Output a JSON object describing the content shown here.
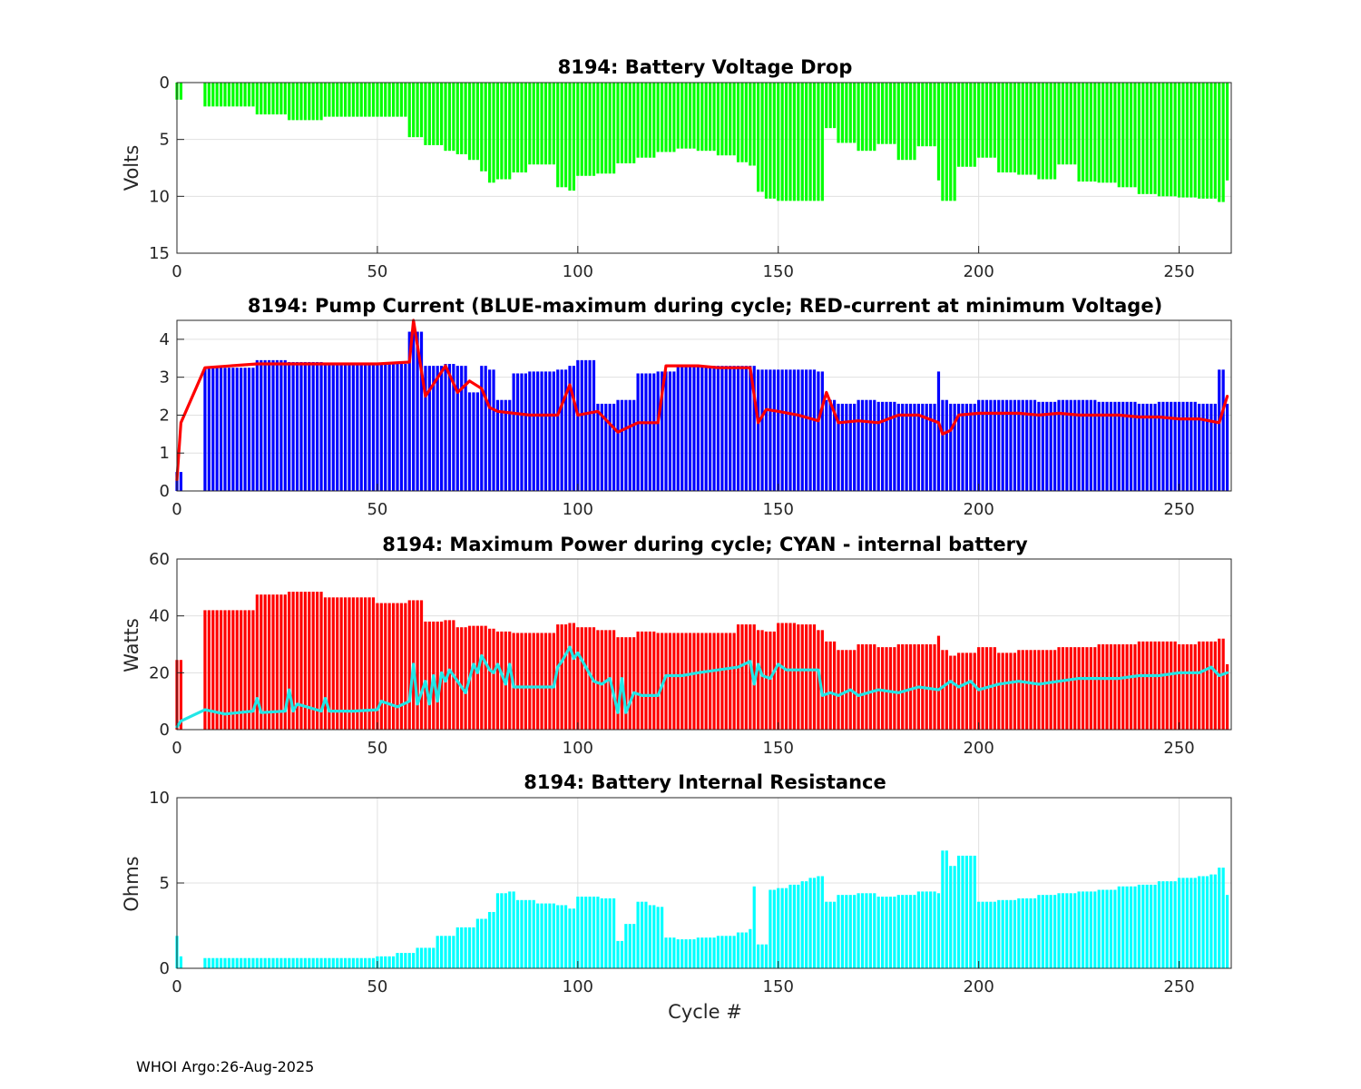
{
  "figure": {
    "footer": "WHOI Argo:26-Aug-2025"
  },
  "chart_data": [
    {
      "type": "bar",
      "title": "8194: Battery Voltage Drop",
      "xlabel": "",
      "ylabel": "Volts",
      "xlim": [
        0,
        263
      ],
      "ylim": [
        0,
        15
      ],
      "y_reversed": true,
      "xticks": [
        0,
        50,
        100,
        150,
        200,
        250
      ],
      "yticks": [
        0,
        5,
        10,
        15
      ],
      "grid": true,
      "series": [
        {
          "name": "voltage drop",
          "color": "#00ff00",
          "style": "bar",
          "x": [
            0,
            7,
            20,
            28,
            37,
            50,
            58,
            62,
            67,
            70,
            73,
            76,
            78,
            80,
            84,
            88,
            95,
            98,
            100,
            105,
            110,
            115,
            120,
            125,
            130,
            135,
            140,
            143,
            145,
            147,
            150,
            155,
            160,
            162,
            165,
            170,
            175,
            180,
            185,
            190,
            191,
            193,
            195,
            200,
            205,
            210,
            215,
            220,
            225,
            230,
            235,
            240,
            245,
            250,
            255,
            260,
            262
          ],
          "values": [
            1.5,
            2.1,
            2.8,
            3.3,
            3.0,
            3.0,
            4.8,
            5.5,
            6.0,
            6.3,
            6.8,
            7.8,
            8.8,
            8.5,
            7.9,
            7.2,
            9.2,
            9.5,
            8.2,
            8.0,
            7.1,
            6.6,
            6.1,
            5.8,
            6.0,
            6.4,
            7.0,
            7.3,
            9.6,
            10.2,
            10.4,
            10.4,
            10.4,
            4.0,
            5.3,
            6.0,
            5.4,
            6.8,
            5.6,
            8.6,
            10.4,
            10.4,
            7.4,
            6.6,
            7.9,
            8.1,
            8.5,
            7.2,
            8.7,
            8.8,
            9.2,
            9.8,
            10.0,
            10.1,
            10.2,
            10.5,
            8.6
          ]
        }
      ]
    },
    {
      "type": "bar",
      "title": "8194: Pump Current (BLUE-maximum during cycle; RED-current at minimum Voltage)",
      "xlabel": "",
      "ylabel": "",
      "xlim": [
        0,
        263
      ],
      "ylim": [
        0,
        4.5
      ],
      "xticks": [
        0,
        50,
        100,
        150,
        200,
        250
      ],
      "yticks": [
        0,
        1,
        2,
        3,
        4
      ],
      "grid": true,
      "series": [
        {
          "name": "BLUE-maximum during cycle",
          "color": "#0000ff",
          "style": "bar",
          "x": [
            0,
            7,
            20,
            28,
            37,
            50,
            58,
            62,
            67,
            70,
            73,
            76,
            78,
            80,
            84,
            88,
            95,
            98,
            100,
            105,
            110,
            115,
            120,
            125,
            130,
            135,
            140,
            143,
            145,
            147,
            150,
            155,
            160,
            162,
            165,
            170,
            175,
            180,
            185,
            190,
            191,
            193,
            195,
            200,
            205,
            210,
            215,
            220,
            225,
            230,
            235,
            240,
            245,
            250,
            255,
            260,
            262
          ],
          "values": [
            0.5,
            3.25,
            3.45,
            3.4,
            3.35,
            3.35,
            4.2,
            3.3,
            3.35,
            3.3,
            2.6,
            3.3,
            3.2,
            2.4,
            3.1,
            3.15,
            3.2,
            3.3,
            3.45,
            2.3,
            2.4,
            3.1,
            3.15,
            3.3,
            3.3,
            3.3,
            3.3,
            3.3,
            3.2,
            3.2,
            3.2,
            3.2,
            3.15,
            2.4,
            2.3,
            2.4,
            2.35,
            2.3,
            2.3,
            3.15,
            2.4,
            2.3,
            2.3,
            2.4,
            2.4,
            2.4,
            2.35,
            2.4,
            2.4,
            2.35,
            2.35,
            2.3,
            2.35,
            2.35,
            2.3,
            3.2,
            2.3
          ]
        },
        {
          "name": "RED-current at minimum Voltage",
          "color": "#ff0000",
          "style": "line",
          "x": [
            0,
            1,
            7,
            20,
            28,
            37,
            50,
            58,
            59,
            62,
            67,
            70,
            73,
            76,
            78,
            80,
            84,
            88,
            95,
            98,
            100,
            105,
            110,
            115,
            120,
            122,
            125,
            130,
            135,
            140,
            143,
            145,
            147,
            150,
            155,
            160,
            162,
            165,
            170,
            175,
            180,
            185,
            190,
            191,
            193,
            195,
            200,
            205,
            210,
            215,
            220,
            225,
            230,
            235,
            240,
            245,
            250,
            255,
            260,
            262
          ],
          "values": [
            0.3,
            1.8,
            3.25,
            3.35,
            3.35,
            3.35,
            3.35,
            3.4,
            4.5,
            2.5,
            3.3,
            2.6,
            2.9,
            2.7,
            2.2,
            2.1,
            2.05,
            2.0,
            2.0,
            2.8,
            2.0,
            2.1,
            1.55,
            1.8,
            1.8,
            3.3,
            3.3,
            3.3,
            3.25,
            3.25,
            3.25,
            1.8,
            2.15,
            2.1,
            2.0,
            1.85,
            2.6,
            1.8,
            1.85,
            1.8,
            2.0,
            2.0,
            1.8,
            1.5,
            1.6,
            2.0,
            2.05,
            2.05,
            2.05,
            2.0,
            2.05,
            2.0,
            2.0,
            2.0,
            1.95,
            1.95,
            1.9,
            1.9,
            1.8,
            2.5
          ]
        }
      ]
    },
    {
      "type": "bar",
      "title": "8194: Maximum Power during cycle; CYAN - internal battery",
      "xlabel": "",
      "ylabel": "Watts",
      "xlim": [
        0,
        263
      ],
      "ylim": [
        0,
        60
      ],
      "xticks": [
        0,
        50,
        100,
        150,
        200,
        250
      ],
      "yticks": [
        0,
        20,
        40,
        60
      ],
      "grid": true,
      "series": [
        {
          "name": "maximum power during cycle",
          "color": "#ff0000",
          "style": "bar",
          "x": [
            0,
            7,
            20,
            28,
            37,
            50,
            58,
            62,
            67,
            70,
            73,
            76,
            78,
            80,
            84,
            88,
            95,
            98,
            100,
            105,
            110,
            115,
            120,
            125,
            130,
            135,
            140,
            143,
            145,
            147,
            150,
            155,
            160,
            162,
            165,
            170,
            175,
            180,
            185,
            190,
            191,
            193,
            195,
            200,
            205,
            210,
            215,
            220,
            225,
            230,
            235,
            240,
            245,
            250,
            255,
            260,
            262
          ],
          "values": [
            24.5,
            42,
            47.5,
            48.5,
            46.5,
            44.5,
            45.5,
            38,
            38.5,
            36,
            36.5,
            36.5,
            35.5,
            34.5,
            34,
            34,
            37,
            37.5,
            36,
            35,
            32.5,
            34.5,
            34,
            34,
            34,
            34,
            37,
            37,
            35,
            34.5,
            37.5,
            37,
            35,
            31,
            28,
            30,
            29,
            30,
            30,
            33,
            28,
            26,
            27,
            29,
            27,
            28,
            28,
            29,
            29,
            30,
            30,
            31,
            31,
            30,
            31,
            32,
            23
          ]
        },
        {
          "name": "CYAN - internal battery",
          "color": "#22e6e6",
          "style": "line",
          "x": [
            0,
            1,
            7,
            12,
            19,
            20,
            21,
            27,
            28,
            29,
            30,
            36,
            37,
            38,
            44,
            50,
            51,
            55,
            58,
            59,
            60,
            62,
            63,
            64,
            65,
            66,
            67,
            68,
            70,
            72,
            74,
            75,
            76,
            78,
            79,
            80,
            82,
            83,
            84,
            88,
            94,
            95,
            96,
            98,
            99,
            100,
            104,
            106,
            108,
            109,
            110,
            111,
            112,
            114,
            116,
            118,
            120,
            122,
            126,
            130,
            135,
            140,
            143,
            144,
            145,
            146,
            148,
            150,
            152,
            155,
            158,
            160,
            161,
            163,
            165,
            168,
            170,
            175,
            180,
            185,
            190,
            193,
            195,
            198,
            200,
            205,
            210,
            215,
            220,
            225,
            230,
            235,
            240,
            245,
            250,
            255,
            258,
            260,
            262
          ],
          "values": [
            1,
            3,
            7,
            5.5,
            6.5,
            11,
            6,
            6.5,
            14,
            6.5,
            9,
            6.5,
            11,
            6.5,
            6.5,
            7,
            10,
            8,
            10,
            23,
            9,
            17,
            9,
            19,
            10,
            20,
            17,
            21,
            17,
            13,
            23,
            20,
            26,
            21,
            20,
            23,
            16,
            23,
            15,
            15,
            15,
            22,
            24,
            29,
            25,
            27,
            17,
            16,
            18,
            12,
            6,
            18,
            6,
            13,
            12,
            12,
            12,
            19,
            19,
            20,
            21,
            22,
            24,
            16,
            23,
            19,
            18,
            23,
            21,
            21,
            21,
            21,
            12,
            13,
            12,
            14,
            12,
            14,
            13,
            15,
            14,
            17,
            15,
            17,
            14,
            16,
            17,
            16,
            17,
            18,
            18,
            18,
            19,
            19,
            20,
            20,
            22,
            19,
            20
          ]
        }
      ]
    },
    {
      "type": "bar",
      "title": "8194: Battery Internal Resistance",
      "xlabel": "Cycle #",
      "ylabel": "Ohms",
      "xlim": [
        0,
        263
      ],
      "ylim": [
        0,
        10
      ],
      "xticks": [
        0,
        50,
        100,
        150,
        200,
        250
      ],
      "yticks": [
        0,
        5,
        10
      ],
      "grid": true,
      "series": [
        {
          "name": "internal resistance",
          "color": "#00ffff",
          "style": "bar",
          "x": [
            0,
            1,
            7,
            20,
            28,
            37,
            50,
            55,
            60,
            65,
            70,
            75,
            78,
            80,
            83,
            85,
            90,
            95,
            98,
            100,
            103,
            106,
            110,
            112,
            115,
            118,
            120,
            122,
            125,
            130,
            135,
            140,
            143,
            144,
            145,
            148,
            150,
            153,
            156,
            158,
            160,
            162,
            165,
            170,
            175,
            180,
            185,
            190,
            191,
            193,
            195,
            200,
            205,
            210,
            215,
            220,
            225,
            230,
            235,
            240,
            245,
            250,
            255,
            258,
            260,
            262
          ],
          "values": [
            1.9,
            0.7,
            0.6,
            0.6,
            0.6,
            0.6,
            0.7,
            0.9,
            1.2,
            1.9,
            2.4,
            2.9,
            3.3,
            4.4,
            4.5,
            4.0,
            3.8,
            3.7,
            3.5,
            4.2,
            4.2,
            4.1,
            1.6,
            2.6,
            3.9,
            3.7,
            3.6,
            1.8,
            1.7,
            1.8,
            1.9,
            2.1,
            2.3,
            4.8,
            1.4,
            4.6,
            4.7,
            4.9,
            5.1,
            5.3,
            5.4,
            3.9,
            4.3,
            4.4,
            4.2,
            4.3,
            4.5,
            4.4,
            6.9,
            6.0,
            6.6,
            3.9,
            4.0,
            4.1,
            4.3,
            4.4,
            4.5,
            4.6,
            4.8,
            4.9,
            5.1,
            5.3,
            5.4,
            5.5,
            5.9,
            4.3
          ]
        }
      ]
    }
  ]
}
